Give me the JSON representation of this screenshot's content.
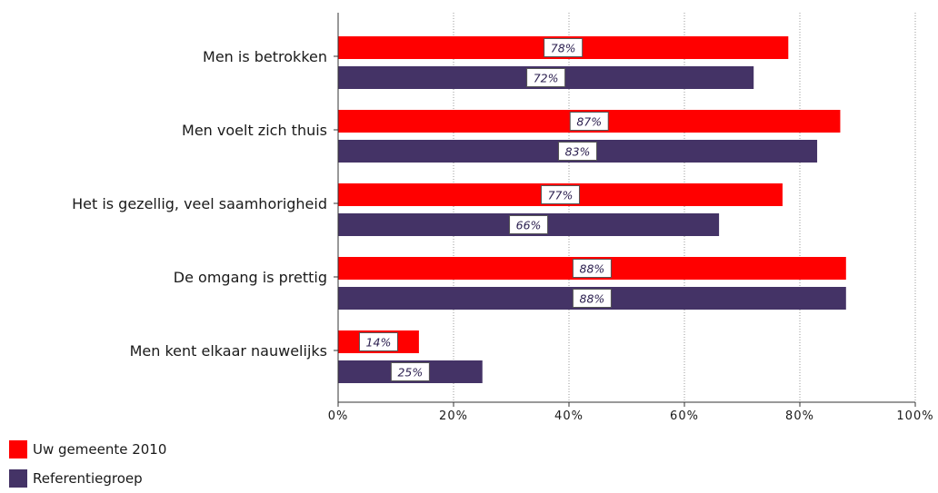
{
  "chart_data": {
    "type": "bar",
    "orientation": "horizontal",
    "categories": [
      "Men is betrokken",
      "Men voelt zich thuis",
      "Het is gezellig, veel saamhorigheid",
      "De omgang is prettig",
      "Men kent elkaar nauwelijks"
    ],
    "series": [
      {
        "name": "Uw gemeente 2010",
        "color": "#ff0000",
        "values": [
          78,
          87,
          77,
          88,
          14
        ]
      },
      {
        "name": "Referentiegroep",
        "color": "#443366",
        "values": [
          72,
          83,
          66,
          88,
          25
        ]
      }
    ],
    "data_labels": [
      [
        "78%",
        "87%",
        "77%",
        "88%",
        "14%"
      ],
      [
        "72%",
        "83%",
        "66%",
        "88%",
        "25%"
      ]
    ],
    "xlim": [
      0,
      100
    ],
    "xticks": [
      0,
      20,
      40,
      60,
      80,
      100
    ],
    "xtick_labels": [
      "0%",
      "20%",
      "40%",
      "60%",
      "80%",
      "100%"
    ],
    "grid": "vertical dotted",
    "legend_position": "bottom-left"
  }
}
